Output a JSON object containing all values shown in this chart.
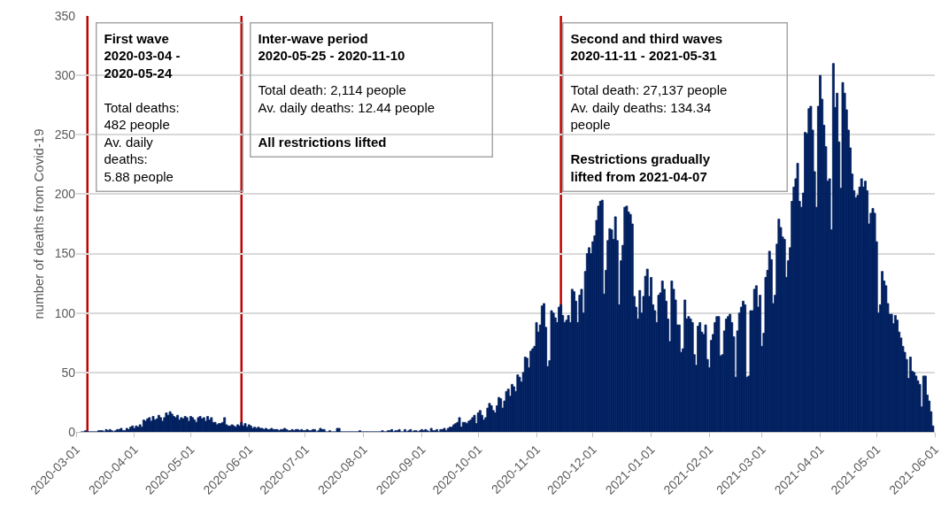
{
  "chart_data": {
    "type": "bar",
    "ylabel": "number of deaths from Covid-19",
    "x": [
      "2020-03-04",
      "2020-03-05",
      "2020-03-06",
      "2020-03-07",
      "2020-03-08",
      "2020-03-09",
      "2020-03-10",
      "2020-03-11",
      "2020-03-12",
      "2020-03-13",
      "2020-03-14",
      "2020-03-15",
      "2020-03-16",
      "2020-03-17",
      "2020-03-18",
      "2020-03-19",
      "2020-03-20",
      "2020-03-21",
      "2020-03-22",
      "2020-03-23",
      "2020-03-24",
      "2020-03-25",
      "2020-03-26",
      "2020-03-27",
      "2020-03-28",
      "2020-03-29",
      "2020-03-30",
      "2020-03-31",
      "2020-04-01",
      "2020-04-02",
      "2020-04-03",
      "2020-04-04",
      "2020-04-05",
      "2020-04-06",
      "2020-04-07",
      "2020-04-08",
      "2020-04-09",
      "2020-04-10",
      "2020-04-11",
      "2020-04-12",
      "2020-04-13",
      "2020-04-14",
      "2020-04-15",
      "2020-04-16",
      "2020-04-17",
      "2020-04-18",
      "2020-04-19",
      "2020-04-20",
      "2020-04-21",
      "2020-04-22",
      "2020-04-23",
      "2020-04-24",
      "2020-04-25",
      "2020-04-26",
      "2020-04-27",
      "2020-04-28",
      "2020-04-29",
      "2020-04-30",
      "2020-05-01",
      "2020-05-02",
      "2020-05-03",
      "2020-05-04",
      "2020-05-05",
      "2020-05-06",
      "2020-05-07",
      "2020-05-08",
      "2020-05-09",
      "2020-05-10",
      "2020-05-11",
      "2020-05-12",
      "2020-05-13",
      "2020-05-14",
      "2020-05-15",
      "2020-05-16",
      "2020-05-17",
      "2020-05-18",
      "2020-05-19",
      "2020-05-20",
      "2020-05-21",
      "2020-05-22",
      "2020-05-23",
      "2020-05-24",
      "2020-05-25",
      "2020-05-26",
      "2020-05-27",
      "2020-05-28",
      "2020-05-29",
      "2020-05-30",
      "2020-05-31",
      "2020-06-01",
      "2020-06-02",
      "2020-06-03",
      "2020-06-04",
      "2020-06-05",
      "2020-06-06",
      "2020-06-07",
      "2020-06-08",
      "2020-06-09",
      "2020-06-10",
      "2020-06-11",
      "2020-06-12",
      "2020-06-13",
      "2020-06-14",
      "2020-06-15",
      "2020-06-16",
      "2020-06-17",
      "2020-06-18",
      "2020-06-19",
      "2020-06-20",
      "2020-06-21",
      "2020-06-22",
      "2020-06-23",
      "2020-06-24",
      "2020-06-25",
      "2020-06-26",
      "2020-06-27",
      "2020-06-28",
      "2020-06-29",
      "2020-06-30",
      "2020-07-01",
      "2020-07-02",
      "2020-07-03",
      "2020-07-04",
      "2020-07-05",
      "2020-07-06",
      "2020-07-07",
      "2020-07-08",
      "2020-07-09",
      "2020-07-10",
      "2020-07-11",
      "2020-07-12",
      "2020-07-13",
      "2020-07-14",
      "2020-07-15",
      "2020-07-16",
      "2020-07-17",
      "2020-07-18",
      "2020-07-19",
      "2020-07-20",
      "2020-07-21",
      "2020-07-22",
      "2020-07-23",
      "2020-07-24",
      "2020-07-25",
      "2020-07-26",
      "2020-07-27",
      "2020-07-28",
      "2020-07-29",
      "2020-07-30",
      "2020-07-31",
      "2020-08-01",
      "2020-08-02",
      "2020-08-03",
      "2020-08-04",
      "2020-08-05",
      "2020-08-06",
      "2020-08-07",
      "2020-08-08",
      "2020-08-09",
      "2020-08-10",
      "2020-08-11",
      "2020-08-12",
      "2020-08-13",
      "2020-08-14",
      "2020-08-15",
      "2020-08-16",
      "2020-08-17",
      "2020-08-18",
      "2020-08-19",
      "2020-08-20",
      "2020-08-21",
      "2020-08-22",
      "2020-08-23",
      "2020-08-24",
      "2020-08-25",
      "2020-08-26",
      "2020-08-27",
      "2020-08-28",
      "2020-08-29",
      "2020-08-30",
      "2020-08-31",
      "2020-09-01",
      "2020-09-02",
      "2020-09-03",
      "2020-09-04",
      "2020-09-05",
      "2020-09-06",
      "2020-09-07",
      "2020-09-08",
      "2020-09-09",
      "2020-09-10",
      "2020-09-11",
      "2020-09-12",
      "2020-09-13",
      "2020-09-14",
      "2020-09-15",
      "2020-09-16",
      "2020-09-17",
      "2020-09-18",
      "2020-09-19",
      "2020-09-20",
      "2020-09-21",
      "2020-09-22",
      "2020-09-23",
      "2020-09-24",
      "2020-09-25",
      "2020-09-26",
      "2020-09-27",
      "2020-09-28",
      "2020-09-29",
      "2020-09-30",
      "2020-10-01",
      "2020-10-02",
      "2020-10-03",
      "2020-10-04",
      "2020-10-05",
      "2020-10-06",
      "2020-10-07",
      "2020-10-08",
      "2020-10-09",
      "2020-10-10",
      "2020-10-11",
      "2020-10-12",
      "2020-10-13",
      "2020-10-14",
      "2020-10-15",
      "2020-10-16",
      "2020-10-17",
      "2020-10-18",
      "2020-10-19",
      "2020-10-20",
      "2020-10-21",
      "2020-10-22",
      "2020-10-23",
      "2020-10-24",
      "2020-10-25",
      "2020-10-26",
      "2020-10-27",
      "2020-10-28",
      "2020-10-29",
      "2020-10-30",
      "2020-10-31",
      "2020-11-01",
      "2020-11-02",
      "2020-11-03",
      "2020-11-04",
      "2020-11-05",
      "2020-11-06",
      "2020-11-07",
      "2020-11-08",
      "2020-11-09",
      "2020-11-10",
      "2020-11-11",
      "2020-11-12",
      "2020-11-13",
      "2020-11-14",
      "2020-11-15",
      "2020-11-16",
      "2020-11-17",
      "2020-11-18",
      "2020-11-19",
      "2020-11-20",
      "2020-11-21",
      "2020-11-22",
      "2020-11-23",
      "2020-11-24",
      "2020-11-25",
      "2020-11-26",
      "2020-11-27",
      "2020-11-28",
      "2020-11-29",
      "2020-11-30",
      "2020-12-01",
      "2020-12-02",
      "2020-12-03",
      "2020-12-04",
      "2020-12-05",
      "2020-12-06",
      "2020-12-07",
      "2020-12-08",
      "2020-12-09",
      "2020-12-10",
      "2020-12-11",
      "2020-12-12",
      "2020-12-13",
      "2020-12-14",
      "2020-12-15",
      "2020-12-16",
      "2020-12-17",
      "2020-12-18",
      "2020-12-19",
      "2020-12-20",
      "2020-12-21",
      "2020-12-22",
      "2020-12-23",
      "2020-12-24",
      "2020-12-25",
      "2020-12-26",
      "2020-12-27",
      "2020-12-28",
      "2020-12-29",
      "2020-12-30",
      "2020-12-31",
      "2021-01-01",
      "2021-01-02",
      "2021-01-03",
      "2021-01-04",
      "2021-01-05",
      "2021-01-06",
      "2021-01-07",
      "2021-01-08",
      "2021-01-09",
      "2021-01-10",
      "2021-01-11",
      "2021-01-12",
      "2021-01-13",
      "2021-01-14",
      "2021-01-15",
      "2021-01-16",
      "2021-01-17",
      "2021-01-18",
      "2021-01-19",
      "2021-01-20",
      "2021-01-21",
      "2021-01-22",
      "2021-01-23",
      "2021-01-24",
      "2021-01-25",
      "2021-01-26",
      "2021-01-27",
      "2021-01-28",
      "2021-01-29",
      "2021-01-30",
      "2021-01-31",
      "2021-02-01",
      "2021-02-02",
      "2021-02-03",
      "2021-02-04",
      "2021-02-05",
      "2021-02-06",
      "2021-02-07",
      "2021-02-08",
      "2021-02-09",
      "2021-02-10",
      "2021-02-11",
      "2021-02-12",
      "2021-02-13",
      "2021-02-14",
      "2021-02-15",
      "2021-02-16",
      "2021-02-17",
      "2021-02-18",
      "2021-02-19",
      "2021-02-20",
      "2021-02-21",
      "2021-02-22",
      "2021-02-23",
      "2021-02-24",
      "2021-02-25",
      "2021-02-26",
      "2021-02-27",
      "2021-02-28",
      "2021-03-01",
      "2021-03-02",
      "2021-03-03",
      "2021-03-04",
      "2021-03-05",
      "2021-03-06",
      "2021-03-07",
      "2021-03-08",
      "2021-03-09",
      "2021-03-10",
      "2021-03-11",
      "2021-03-12",
      "2021-03-13",
      "2021-03-14",
      "2021-03-15",
      "2021-03-16",
      "2021-03-17",
      "2021-03-18",
      "2021-03-19",
      "2021-03-20",
      "2021-03-21",
      "2021-03-22",
      "2021-03-23",
      "2021-03-24",
      "2021-03-25",
      "2021-03-26",
      "2021-03-27",
      "2021-03-28",
      "2021-03-29",
      "2021-03-30",
      "2021-03-31",
      "2021-04-01",
      "2021-04-02",
      "2021-04-03",
      "2021-04-04",
      "2021-04-05",
      "2021-04-06",
      "2021-04-07",
      "2021-04-08",
      "2021-04-09",
      "2021-04-10",
      "2021-04-11",
      "2021-04-12",
      "2021-04-13",
      "2021-04-14",
      "2021-04-15",
      "2021-04-16",
      "2021-04-17",
      "2021-04-18",
      "2021-04-19",
      "2021-04-20",
      "2021-04-21",
      "2021-04-22",
      "2021-04-23",
      "2021-04-24",
      "2021-04-25",
      "2021-04-26",
      "2021-04-27",
      "2021-04-28",
      "2021-04-29",
      "2021-04-30",
      "2021-05-01",
      "2021-05-02",
      "2021-05-03",
      "2021-05-04",
      "2021-05-05",
      "2021-05-06",
      "2021-05-07",
      "2021-05-08",
      "2021-05-09",
      "2021-05-10",
      "2021-05-11",
      "2021-05-12",
      "2021-05-13",
      "2021-05-14",
      "2021-05-15",
      "2021-05-16",
      "2021-05-17",
      "2021-05-18",
      "2021-05-19",
      "2021-05-20",
      "2021-05-21",
      "2021-05-22",
      "2021-05-23",
      "2021-05-24",
      "2021-05-25",
      "2021-05-26",
      "2021-05-27",
      "2021-05-28",
      "2021-05-29",
      "2021-05-30",
      "2021-05-31"
    ],
    "values": [
      0,
      0,
      1,
      0,
      0,
      0,
      0,
      0,
      0,
      1,
      1,
      1,
      0,
      2,
      1,
      2,
      1,
      0,
      1,
      2,
      2,
      3,
      1,
      1,
      3,
      2,
      4,
      5,
      3,
      5,
      4,
      6,
      4,
      10,
      9,
      11,
      12,
      9,
      13,
      10,
      11,
      14,
      12,
      9,
      12,
      16,
      14,
      17,
      15,
      13,
      12,
      14,
      10,
      12,
      11,
      13,
      12,
      9,
      13,
      12,
      10,
      8,
      12,
      13,
      11,
      12,
      9,
      13,
      10,
      12,
      8,
      8,
      6,
      7,
      7,
      8,
      12,
      6,
      5,
      5,
      6,
      5,
      4,
      6,
      5,
      8,
      5,
      7,
      4,
      6,
      5,
      3,
      4,
      3,
      4,
      3,
      3,
      2,
      3,
      2,
      2,
      3,
      2,
      2,
      2,
      1,
      2,
      2,
      3,
      2,
      1,
      1,
      2,
      1,
      2,
      2,
      1,
      2,
      1,
      1,
      2,
      1,
      1,
      2,
      2,
      0,
      1,
      3,
      2,
      2,
      0,
      0,
      1,
      0,
      0,
      0,
      3,
      3,
      0,
      0,
      0,
      0,
      0,
      0,
      0,
      0,
      0,
      0,
      1,
      0,
      0,
      0,
      0,
      0,
      0,
      0,
      0,
      0,
      0,
      0,
      1,
      0,
      0,
      1,
      1,
      2,
      0,
      1,
      1,
      2,
      0,
      0,
      2,
      0,
      1,
      2,
      0,
      1,
      1,
      0,
      1,
      2,
      1,
      2,
      1,
      0,
      3,
      1,
      1,
      2,
      0,
      2,
      2,
      3,
      1,
      3,
      4,
      4,
      6,
      7,
      8,
      12,
      4,
      8,
      8,
      7,
      9,
      10,
      12,
      14,
      7,
      16,
      18,
      14,
      10,
      12,
      20,
      24,
      22,
      18,
      16,
      22,
      29,
      28,
      20,
      26,
      34,
      36,
      30,
      40,
      38,
      34,
      48,
      46,
      42,
      50,
      63,
      62,
      54,
      68,
      70,
      72,
      92,
      84,
      90,
      106,
      108,
      88,
      55,
      60,
      102,
      100,
      96,
      92,
      105,
      107,
      98,
      92,
      94,
      98,
      92,
      120,
      118,
      110,
      92,
      115,
      120,
      100,
      135,
      150,
      155,
      150,
      160,
      165,
      178,
      190,
      194,
      195,
      116,
      136,
      161,
      171,
      170,
      162,
      181,
      161,
      107,
      144,
      157,
      189,
      190,
      185,
      183,
      175,
      114,
      105,
      95,
      119,
      100,
      114,
      131,
      137,
      114,
      130,
      107,
      102,
      92,
      115,
      117,
      127,
      120,
      110,
      95,
      76,
      127,
      120,
      111,
      90,
      90,
      67,
      70,
      111,
      95,
      97,
      95,
      92,
      65,
      56,
      89,
      92,
      84,
      82,
      90,
      61,
      54,
      77,
      82,
      92,
      97,
      97,
      64,
      65,
      85,
      95,
      97,
      99,
      92,
      80,
      46,
      85,
      100,
      105,
      110,
      107,
      46,
      47,
      102,
      102,
      120,
      123,
      105,
      115,
      72,
      83,
      130,
      136,
      152,
      145,
      108,
      115,
      158,
      179,
      172,
      164,
      162,
      130,
      144,
      155,
      194,
      206,
      213,
      226,
      194,
      189,
      201,
      252,
      251,
      272,
      274,
      254,
      219,
      189,
      274,
      300,
      280,
      258,
      240,
      211,
      213,
      170,
      310,
      273,
      285,
      244,
      205,
      294,
      285,
      271,
      254,
      239,
      217,
      203,
      197,
      199,
      206,
      213,
      206,
      211,
      203,
      175,
      184,
      188,
      184,
      160,
      100,
      107,
      135,
      127,
      123,
      108,
      99,
      99,
      91,
      98,
      94,
      84,
      79,
      72,
      67,
      61,
      45,
      63,
      51,
      50,
      47,
      43,
      40,
      21,
      47,
      47,
      31,
      26,
      17,
      5
    ],
    "color": "#002060",
    "xlim": [
      "2020-03-01",
      "2021-06-01"
    ],
    "xticks": [
      "2020-03-01",
      "2020-04-01",
      "2020-05-01",
      "2020-06-01",
      "2020-07-01",
      "2020-08-01",
      "2020-09-01",
      "2020-10-01",
      "2020-11-01",
      "2020-12-01",
      "2021-01-01",
      "2021-02-01",
      "2021-03-01",
      "2021-04-01",
      "2021-05-01",
      "2021-06-01"
    ],
    "ylim": [
      0,
      350
    ],
    "yticks": [
      0,
      50,
      100,
      150,
      200,
      250,
      300,
      350
    ],
    "grid": "y",
    "ref_lines": [
      {
        "axis": "x",
        "value": "2020-03-07",
        "color": "#c00000"
      },
      {
        "axis": "x",
        "value": "2020-05-28",
        "color": "#c00000"
      },
      {
        "axis": "x",
        "value": "2020-11-14",
        "color": "#c00000"
      }
    ],
    "annotations": [
      "First wave\n2020-03-04 -\n2020-05-24\n\nTotal deaths:\n482 people\nAv. daily\ndeaths:\n5.88 people",
      "Inter-wave period\n2020-05-25 - 2020-11-10\n\nTotal death: 2,114 people\nAv. daily deaths: 12.44 people\n\nAll restrictions lifted",
      "Second and third waves\n2020-11-11 - 2021-05-31\n\nTotal death: 27,137 people\nAv. daily deaths: 134.34\npeople\n\nRestrictions gradually\nlifted from 2021-04-07"
    ]
  }
}
